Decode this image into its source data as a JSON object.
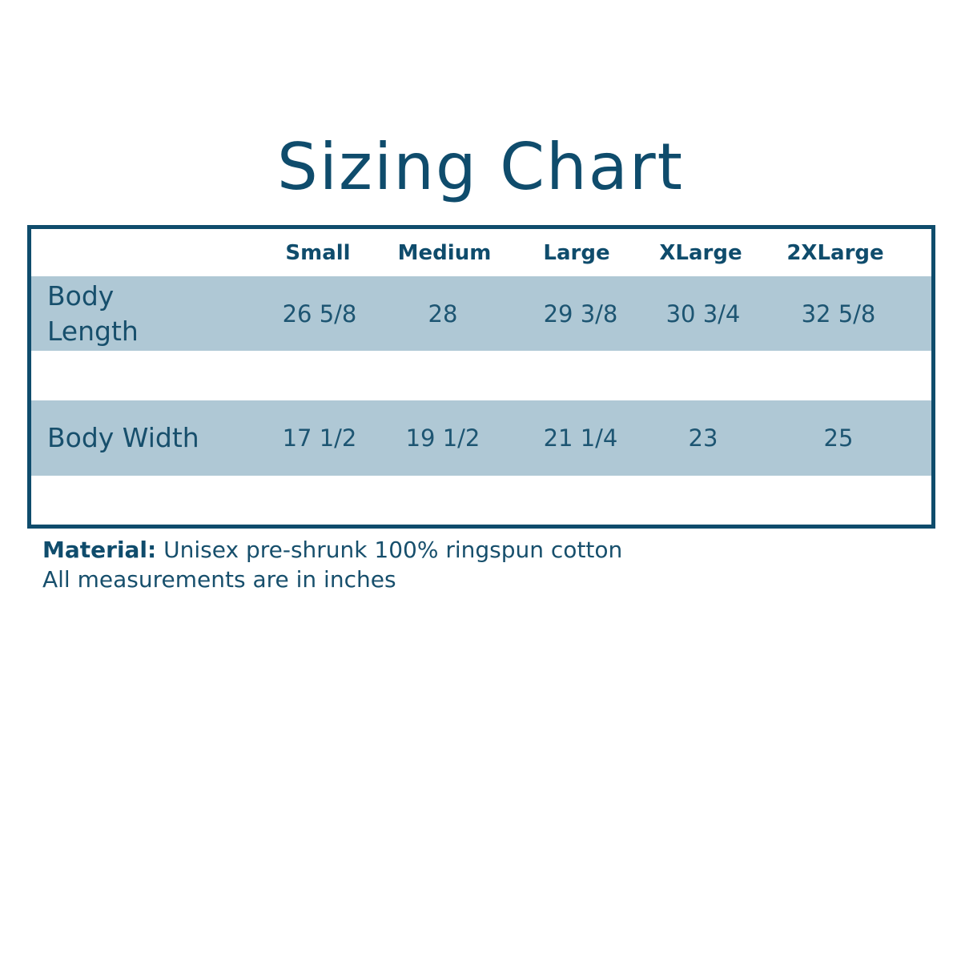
{
  "title": "Sizing Chart",
  "table": {
    "columns": [
      "Small",
      "Medium",
      "Large",
      "XLarge",
      "2XLarge"
    ],
    "rows": [
      {
        "label": "Body Length",
        "values": [
          "26 5/8",
          "28",
          "29 3/8",
          "30 3/4",
          "32 5/8"
        ]
      },
      {
        "label": "Body Width",
        "values": [
          "17 1/2",
          "19 1/2",
          "21 1/4",
          "23",
          "25"
        ]
      }
    ]
  },
  "footer": {
    "material_label": "Material:",
    "material_value": " Unisex pre-shrunk 100% ringspun cotton",
    "units_note": "All measurements are in inches"
  },
  "colors": {
    "border": "#0f4c6c",
    "row_fill": "#afc8d5",
    "text": "#174f6c"
  }
}
